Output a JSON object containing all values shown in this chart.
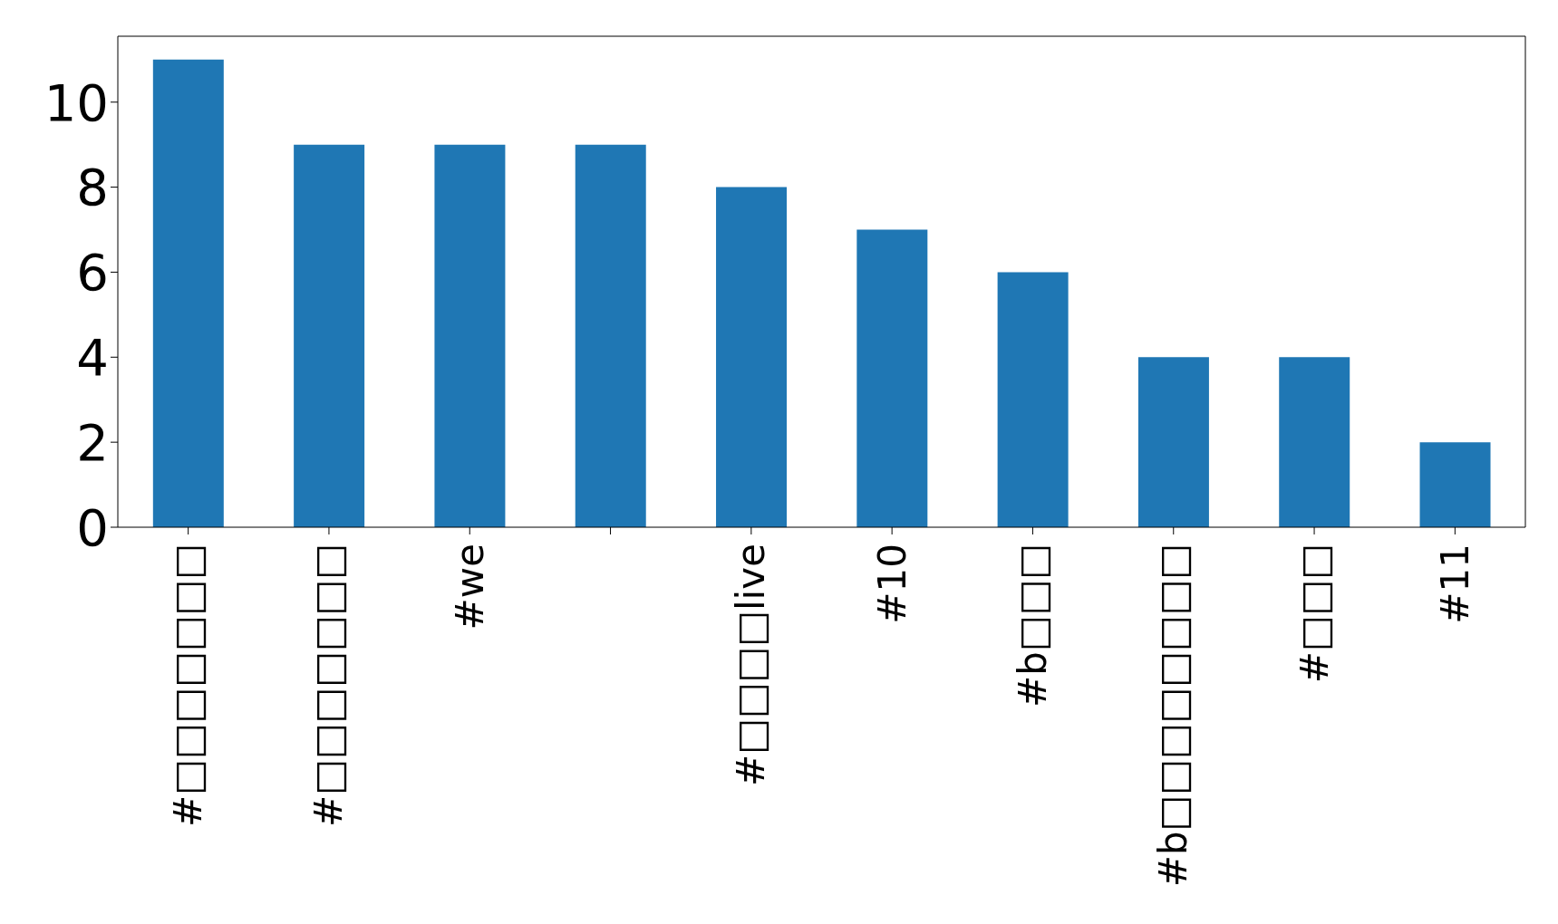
{
  "chart_data": {
    "type": "bar",
    "categories": [
      "#□□□□□□□",
      "#□□□□□□□",
      "#we",
      null,
      "#□□□□live",
      "#10",
      "#b□□□",
      "#b□□□□□□□□",
      "#□□□",
      "#11"
    ],
    "values": [
      11,
      9,
      9,
      9,
      8,
      7,
      6,
      4,
      4,
      2
    ],
    "color": "#1f77b4",
    "ylim": [
      0,
      11.55
    ],
    "yticks": [
      0,
      2,
      4,
      6,
      8,
      10
    ]
  }
}
